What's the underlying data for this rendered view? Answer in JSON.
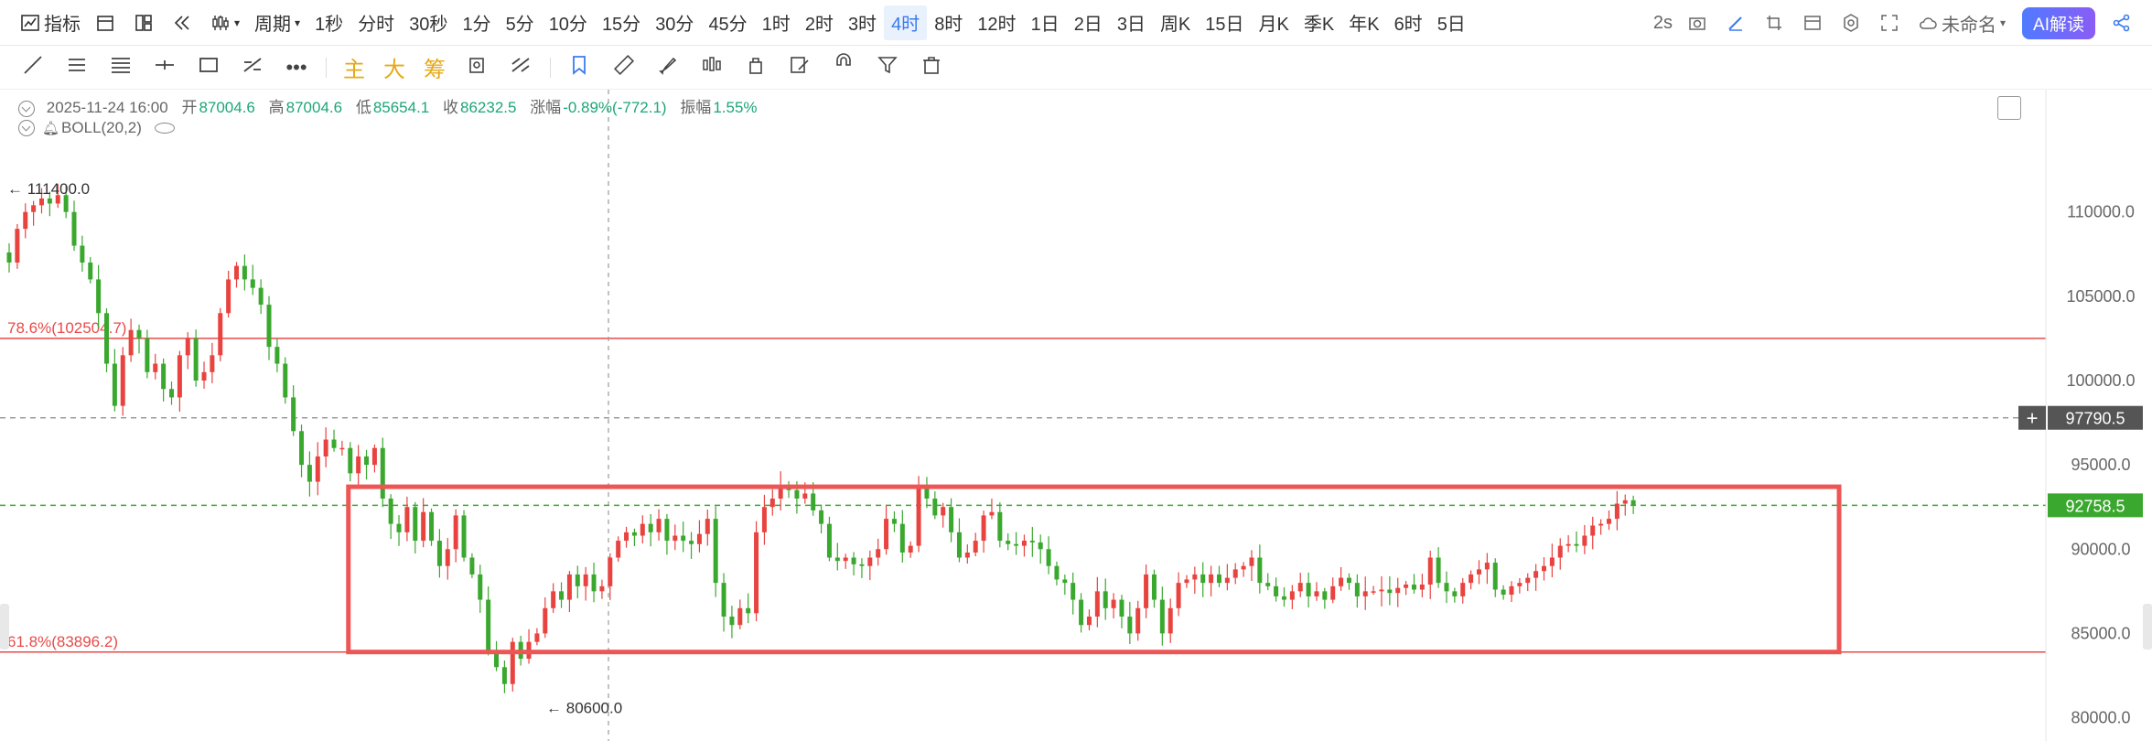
{
  "toolbar": {
    "indicator_label": "指标",
    "period_label": "周期",
    "periods": [
      "1秒",
      "分时",
      "30秒",
      "1分",
      "5分",
      "10分",
      "15分",
      "30分",
      "45分",
      "1时",
      "2时",
      "3时",
      "4时",
      "8时",
      "12时",
      "1日",
      "2日",
      "3日",
      "周K",
      "15日",
      "月K",
      "季K",
      "年K",
      "6时",
      "5日"
    ],
    "active_period": "4时",
    "interval_label": "2s",
    "save_name": "未命名",
    "ai_label": "AI解读"
  },
  "drawing_tools": {
    "text_tools": [
      "主",
      "大",
      "筹"
    ]
  },
  "info_bar": {
    "datetime": "2025-11-24 16:00",
    "open_label": "开",
    "open": "87004.6",
    "high_label": "高",
    "high": "87004.6",
    "low_label": "低",
    "low": "85654.1",
    "close_label": "收",
    "close": "86232.5",
    "change_label": "涨幅",
    "change": "-0.89%(-772.1)",
    "amp_label": "振幅",
    "amp": "1.55%"
  },
  "indicator": {
    "label": "BOLL(20,2)"
  },
  "colors": {
    "up": "#e8433f",
    "down": "#3aa82e",
    "fib": "#e84a4a",
    "box": "#ee5555",
    "accent": "#3b7bef"
  },
  "chart_data": {
    "type": "candlestick",
    "ylim": [
      79000,
      114000
    ],
    "y_ticks": [
      80000,
      85000,
      90000,
      95000,
      100000,
      105000,
      110000
    ],
    "y_tick_labels": [
      "80000.0",
      "85000.0",
      "90000.0",
      "95000.0",
      "100000.0",
      "105000.0",
      "110000.0"
    ],
    "series_close": [
      107000,
      109000,
      110000,
      110400,
      110800,
      110500,
      111000,
      110000,
      108000,
      107000,
      106000,
      104000,
      101000,
      98500,
      101500,
      103000,
      102500,
      100500,
      101000,
      99500,
      99000,
      101500,
      102500,
      100000,
      100500,
      101500,
      104000,
      106000,
      106800,
      106000,
      105500,
      104500,
      102000,
      101000,
      99000,
      97000,
      95000,
      94000,
      95500,
      96500,
      96000,
      96000,
      94500,
      95500,
      95000,
      96000,
      93000,
      91500,
      91000,
      92500,
      90500,
      92200,
      90500,
      89000,
      90000,
      92000,
      89500,
      88500,
      87000,
      84000,
      83000,
      82000,
      84500,
      83500,
      84500,
      85000,
      86500,
      87500,
      87000,
      88500,
      87800,
      88500,
      87500,
      87800,
      89500,
      90500,
      91000,
      90800,
      91500,
      91000,
      91800,
      90500,
      90800,
      90500,
      90300,
      90900,
      91800,
      88000,
      86000,
      85500,
      86500,
      86200,
      91000,
      92500,
      93000,
      93800,
      93500,
      93000,
      93300,
      92300,
      91500,
      89500,
      89300,
      89500,
      89100,
      89000,
      89500,
      90000,
      91800,
      91500,
      89800,
      90200,
      93800,
      93000,
      92000,
      92500,
      91000,
      89500,
      89800,
      90500,
      92000,
      92200,
      90500,
      90300,
      90200,
      90500,
      90400,
      90000,
      89000,
      88200,
      88000,
      87000,
      85500,
      86000,
      87500,
      86500,
      87000,
      86000,
      85000,
      86500,
      88500,
      87000,
      85000,
      86500,
      88000,
      88200,
      88500,
      88000,
      88500,
      88000,
      88300,
      88800,
      89000,
      89500,
      88000,
      87800,
      87200,
      87000,
      87500,
      88000,
      87200,
      87500,
      87000,
      87800,
      88300,
      88000,
      87200,
      87500,
      87500,
      87600,
      87400,
      87700,
      87900,
      87600,
      87900,
      89500,
      88000,
      87500,
      87200,
      88000,
      88500,
      88800,
      89200,
      87600,
      87300,
      87800,
      88000,
      88300,
      88700,
      89000,
      89500,
      90200,
      90300,
      90200,
      90800,
      91400,
      91500,
      91800,
      92700,
      92900,
      92600
    ],
    "last_price": "92758.5",
    "crosshair_price": "97790.5",
    "crosshair_price_value": 97790.5,
    "period_high": "111400.0",
    "period_high_value": 111400,
    "period_low": "80600.0",
    "period_low_value": 80600,
    "fib_levels": [
      {
        "label": "78.6%(102504.7)",
        "value": 102504.7
      },
      {
        "label": "61.8%(83896.2)",
        "value": 83896.2
      }
    ],
    "range_box": {
      "top": 93700,
      "bottom": 83900,
      "start_index": 42,
      "end_index": 225
    }
  }
}
